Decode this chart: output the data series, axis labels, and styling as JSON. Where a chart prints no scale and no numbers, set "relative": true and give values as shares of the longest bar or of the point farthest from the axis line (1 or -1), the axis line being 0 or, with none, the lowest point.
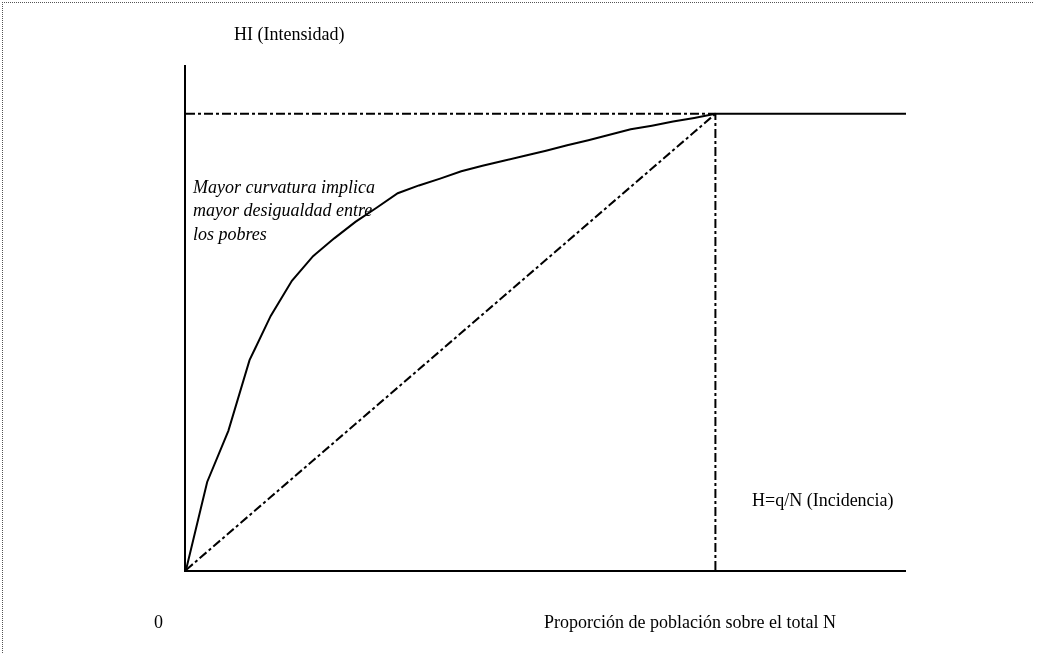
{
  "chart_data": {
    "type": "line",
    "relative": true,
    "xlabel": "Proporción de población sobre el total N",
    "ylabel": "HI (Intensidad)",
    "annotations": [
      "Mayor curvatura implica\nmayor desigualdad entre\nlos pobres",
      "0",
      "H=q/N (Incidencia)"
    ],
    "line_style": "solid",
    "marker": "none",
    "grid": false,
    "categories": [
      null,
      null,
      null,
      null,
      null,
      null,
      null,
      null,
      null,
      null,
      null,
      null,
      null,
      null,
      null,
      null,
      null,
      null,
      null,
      null,
      null,
      null,
      null,
      null,
      null,
      null,
      null,
      null,
      null,
      null,
      null,
      null,
      null,
      null,
      null
    ],
    "series": [
      {
        "color": "#000000",
        "values": [
          0,
          0.193,
          0.305,
          0.46,
          0.557,
          0.634,
          0.688,
          0.727,
          0.763,
          0.794,
          0.826,
          0.843,
          0.858,
          0.874,
          0.886,
          0.897,
          0.908,
          0.919,
          0.931,
          0.942,
          0.954,
          0.966,
          0.974,
          0.983,
          0.991,
          1,
          1,
          1,
          1,
          1,
          1,
          1,
          1,
          1,
          1
        ]
      },
      {
        "color": "#000000",
        "line_style": "dashed",
        "values": [
          0,
          0.04,
          0.08,
          0.12,
          0.16,
          0.2,
          0.24,
          0.28,
          0.32,
          0.36,
          0.4,
          0.44,
          0.48,
          0.52,
          0.56,
          0.6,
          0.64,
          0.68,
          0.72,
          0.76,
          0.8,
          0.84,
          0.88,
          0.92,
          0.96,
          1,
          null,
          null,
          null,
          null,
          null,
          null,
          null,
          null,
          null
        ]
      },
      {
        "color": "#000000",
        "line_style": "dashed",
        "values": [
          1,
          1,
          1,
          1,
          1,
          1,
          1,
          1,
          1,
          1,
          1,
          1,
          1,
          1,
          1,
          1,
          1,
          1,
          1,
          1,
          1,
          1,
          1,
          1,
          1,
          1,
          null,
          null,
          null,
          null,
          null,
          null,
          null,
          null,
          null
        ]
      }
    ]
  }
}
